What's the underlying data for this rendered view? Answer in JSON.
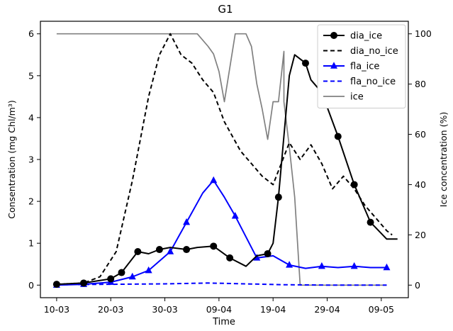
{
  "chart_data": {
    "type": "line",
    "title": "G1",
    "xlabel": "Time",
    "ylabel": "Consentration (mg Chl/m³)",
    "y2label": "Ice concentration (%)",
    "x_start_date": "2019-03-10",
    "xlim": [
      "2019-03-07",
      "2019-05-14"
    ],
    "ylim": [
      -0.3,
      6.3
    ],
    "y2lim": [
      -5,
      105
    ],
    "xticks": [
      "10-03",
      "20-03",
      "30-03",
      "09-04",
      "19-04",
      "29-04",
      "09-05"
    ],
    "yticks": [
      0,
      1,
      2,
      3,
      4,
      5,
      6
    ],
    "y2ticks": [
      0,
      20,
      40,
      60,
      80,
      100
    ],
    "grid": false,
    "legend_position": "top-right",
    "series": [
      {
        "name": "dia_ice",
        "axis": "left",
        "color": "#000000",
        "line_style": "solid",
        "marker": "circle",
        "x": [
          "2019-03-10",
          "2019-03-15",
          "2019-03-20",
          "2019-03-22",
          "2019-03-25",
          "2019-03-27",
          "2019-03-29",
          "2019-03-31",
          "2019-04-03",
          "2019-04-05",
          "2019-04-08",
          "2019-04-11",
          "2019-04-14",
          "2019-04-16",
          "2019-04-18",
          "2019-04-19",
          "2019-04-20",
          "2019-04-22",
          "2019-04-23",
          "2019-04-25",
          "2019-04-26",
          "2019-04-28",
          "2019-05-01",
          "2019-05-04",
          "2019-05-07",
          "2019-05-10",
          "2019-05-12"
        ],
        "y": [
          0.02,
          0.05,
          0.15,
          0.3,
          0.8,
          0.75,
          0.85,
          0.9,
          0.85,
          0.9,
          0.93,
          0.65,
          0.45,
          0.7,
          0.75,
          1.0,
          2.1,
          5.0,
          5.5,
          5.3,
          4.9,
          4.6,
          3.55,
          2.4,
          1.5,
          1.1,
          1.1
        ],
        "marker_indices": [
          0,
          1,
          2,
          3,
          4,
          6,
          8,
          10,
          11,
          14,
          16,
          19,
          21,
          22,
          23,
          24
        ]
      },
      {
        "name": "dia_no_ice",
        "axis": "left",
        "color": "#000000",
        "line_style": "dashed",
        "marker": "none",
        "x": [
          "2019-03-10",
          "2019-03-15",
          "2019-03-18",
          "2019-03-21",
          "2019-03-24",
          "2019-03-27",
          "2019-03-29",
          "2019-03-31",
          "2019-04-02",
          "2019-04-04",
          "2019-04-06",
          "2019-04-08",
          "2019-04-10",
          "2019-04-13",
          "2019-04-15",
          "2019-04-17",
          "2019-04-19",
          "2019-04-22",
          "2019-04-24",
          "2019-04-26",
          "2019-04-28",
          "2019-04-30",
          "2019-05-02",
          "2019-05-04",
          "2019-05-06",
          "2019-05-08",
          "2019-05-10",
          "2019-05-11"
        ],
        "y": [
          0.02,
          0.05,
          0.2,
          0.8,
          2.5,
          4.5,
          5.5,
          6.0,
          5.5,
          5.3,
          4.9,
          4.6,
          3.9,
          3.2,
          2.9,
          2.6,
          2.4,
          3.4,
          3.0,
          3.35,
          2.9,
          2.3,
          2.6,
          2.3,
          1.9,
          1.6,
          1.3,
          1.2
        ]
      },
      {
        "name": "fla_ice",
        "axis": "left",
        "color": "#0000ff",
        "line_style": "solid",
        "marker": "triangle",
        "x": [
          "2019-03-10",
          "2019-03-15",
          "2019-03-20",
          "2019-03-24",
          "2019-03-27",
          "2019-03-31",
          "2019-04-03",
          "2019-04-06",
          "2019-04-08",
          "2019-04-10",
          "2019-04-12",
          "2019-04-16",
          "2019-04-19",
          "2019-04-22",
          "2019-04-25",
          "2019-04-28",
          "2019-05-01",
          "2019-05-04",
          "2019-05-07",
          "2019-05-10"
        ],
        "y": [
          0.0,
          0.02,
          0.07,
          0.2,
          0.35,
          0.8,
          1.5,
          2.2,
          2.5,
          2.1,
          1.65,
          0.65,
          0.7,
          0.48,
          0.4,
          0.45,
          0.42,
          0.45,
          0.42,
          0.42
        ],
        "marker_indices": [
          0,
          1,
          2,
          3,
          4,
          5,
          6,
          8,
          10,
          11,
          13,
          15,
          17,
          19
        ]
      },
      {
        "name": "fla_no_ice",
        "axis": "left",
        "color": "#0000ff",
        "line_style": "dashed",
        "marker": "none",
        "x": [
          "2019-03-10",
          "2019-03-20",
          "2019-03-30",
          "2019-04-07",
          "2019-04-14",
          "2019-04-21",
          "2019-04-30",
          "2019-05-10"
        ],
        "y": [
          0.01,
          0.02,
          0.03,
          0.05,
          0.03,
          0.01,
          0.0,
          0.0
        ]
      },
      {
        "name": "ice",
        "axis": "right",
        "color": "#808080",
        "line_style": "solid",
        "marker": "none",
        "x": [
          "2019-03-10",
          "2019-03-20",
          "2019-03-30",
          "2019-04-02",
          "2019-04-05",
          "2019-04-07",
          "2019-04-08",
          "2019-04-09",
          "2019-04-10",
          "2019-04-10",
          "2019-04-12",
          "2019-04-14",
          "2019-04-15",
          "2019-04-16",
          "2019-04-17",
          "2019-04-18",
          "2019-04-19",
          "2019-04-20",
          "2019-04-21",
          "2019-04-21",
          "2019-04-22",
          "2019-04-23",
          "2019-04-24",
          "2019-05-10"
        ],
        "y": [
          100,
          100,
          100,
          100,
          100,
          95,
          92,
          85,
          73,
          73,
          100,
          100,
          95,
          80,
          70,
          58,
          73,
          73,
          93,
          73,
          55,
          35,
          0,
          0
        ]
      }
    ]
  }
}
